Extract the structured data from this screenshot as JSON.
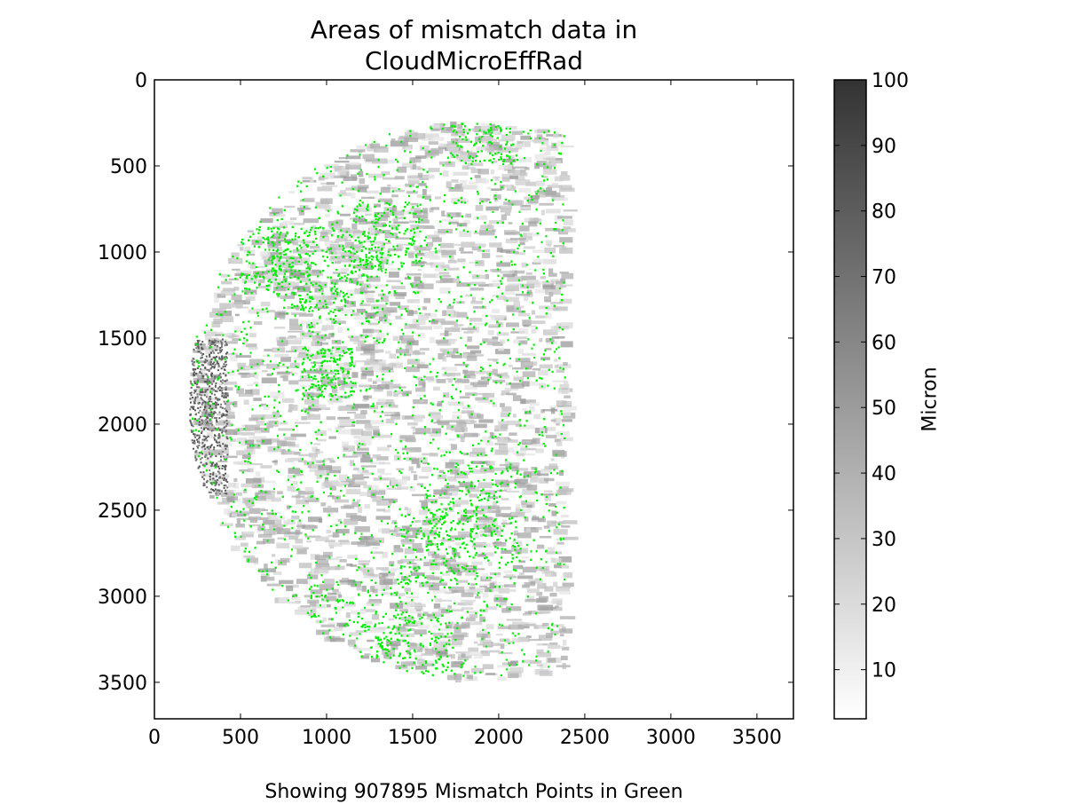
{
  "chart_data": {
    "type": "heatmap",
    "title_line1": "Areas of mismatch data in",
    "title_line2": "CloudMicroEffRad",
    "footer": "Showing 907895 Mismatch Points in Green",
    "xlim": [
      0,
      3712
    ],
    "ylim": [
      3712,
      0
    ],
    "y_inverted": true,
    "x_ticks": [
      0,
      500,
      1000,
      1500,
      2000,
      2500,
      3000,
      3500
    ],
    "y_ticks": [
      0,
      500,
      1000,
      1500,
      2000,
      2500,
      3000,
      3500
    ],
    "x_tick_labels": [
      "0",
      "500",
      "1000",
      "1500",
      "2000",
      "2500",
      "3000",
      "3500"
    ],
    "y_tick_labels": [
      "0",
      "500",
      "1000",
      "1500",
      "2000",
      "2500",
      "3000",
      "3500"
    ],
    "colorbar": {
      "label": "Micron",
      "range": [
        2.5,
        100
      ],
      "ticks": [
        10,
        20,
        30,
        40,
        50,
        60,
        70,
        80,
        90,
        100
      ],
      "tick_labels": [
        "10",
        "20",
        "30",
        "40",
        "50",
        "60",
        "70",
        "80",
        "90",
        "100"
      ],
      "colormap": "gray_reversed"
    },
    "mismatch_points": 907895,
    "mismatch_color": "#00ee00",
    "grid": false
  }
}
